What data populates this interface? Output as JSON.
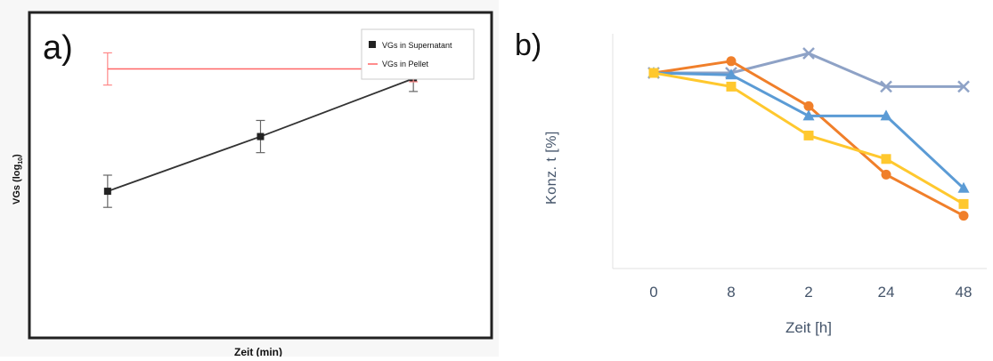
{
  "chart_data": [
    {
      "type": "line",
      "panel_label": "a)",
      "xlabel": "Zeit (min)",
      "ylabel": {
        "text": "VGs (log",
        "subscript": "10",
        "suffix": ")"
      },
      "xlim": [
        0,
        3
      ],
      "ylim": [
        0,
        10
      ],
      "grid": false,
      "legend": "top-right",
      "series": [
        {
          "name": "VGs in Supernatant",
          "color": "#333333",
          "marker": "square",
          "x": [
            0.5,
            1.5,
            2.5
          ],
          "values": [
            4.5,
            6.2,
            8.0
          ],
          "error": [
            0.5,
            0.5,
            0.4
          ]
        },
        {
          "name": "VGs in Pellet",
          "color": "#ff6666",
          "marker": "none",
          "x": [
            0.5,
            2.5
          ],
          "values": [
            8.3,
            8.3
          ],
          "error": [
            0.5,
            0.4
          ]
        }
      ]
    },
    {
      "type": "line",
      "panel_label": "b)",
      "xlabel": "Zeit [h]",
      "ylabel": "Konz. t [%]",
      "categories": [
        "0",
        "8",
        "2",
        "24",
        "48"
      ],
      "ylim": [
        0,
        120
      ],
      "grid": false,
      "legend": "none",
      "series": [
        {
          "color": "#8ea2c6",
          "marker": "x",
          "values": [
            100,
            100,
            110,
            93,
            93
          ]
        },
        {
          "color": "#f07f2a",
          "marker": "circle",
          "values": [
            100,
            106,
            83,
            48,
            27
          ]
        },
        {
          "color": "#5b9bd5",
          "marker": "triangle",
          "values": [
            100,
            99,
            78,
            78,
            41
          ]
        },
        {
          "color": "#ffc82e",
          "marker": "square",
          "values": [
            100,
            93,
            68,
            56,
            33
          ]
        }
      ]
    }
  ]
}
